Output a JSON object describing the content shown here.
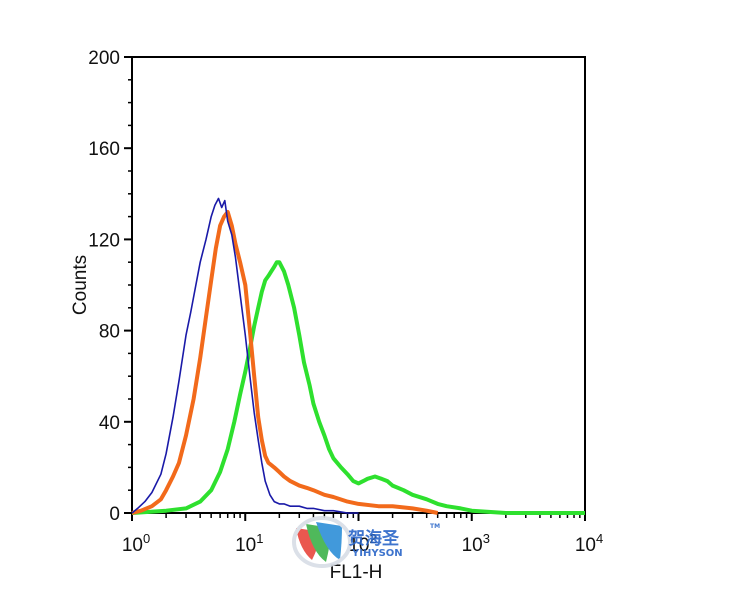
{
  "chart_data": {
    "type": "line",
    "title": "",
    "xlabel": "FL1-H",
    "ylabel": "Counts",
    "x_scale": "log",
    "xlim": [
      1,
      10000
    ],
    "ylim": [
      0,
      200
    ],
    "y_ticks": [
      "0",
      "40",
      "80",
      "120",
      "160",
      "200"
    ],
    "x_ticks": [
      {
        "base": "10",
        "exp": "0"
      },
      {
        "base": "10",
        "exp": "1"
      },
      {
        "base": "10",
        "exp": "2"
      },
      {
        "base": "10",
        "exp": "3"
      },
      {
        "base": "10",
        "exp": "4"
      }
    ],
    "grid": false,
    "series": [
      {
        "color": "#1a1aa8",
        "stroke": "thin",
        "x": [
          1,
          1.12,
          1.3,
          1.5,
          1.8,
          2.0,
          2.3,
          2.6,
          3.0,
          3.3,
          3.6,
          4.0,
          4.5,
          5.0,
          5.4,
          5.8,
          6.2,
          6.6,
          7.0,
          7.6,
          8.2,
          9.0,
          10.0,
          11.0,
          12.0,
          13.0,
          14.0,
          15.0,
          16.5,
          18.0,
          20.0,
          22.0,
          25.0,
          30.0,
          35.0,
          40.0,
          50.0,
          60.0,
          80.0,
          100.0
        ],
        "values": [
          0,
          2,
          5,
          9,
          17,
          26,
          42,
          58,
          78,
          88,
          98,
          110,
          120,
          130,
          135,
          138,
          134,
          137,
          128,
          122,
          112,
          96,
          78,
          60,
          44,
          32,
          22,
          14,
          8,
          5,
          4,
          4,
          3,
          3,
          2,
          2,
          1,
          1,
          0,
          0
        ]
      },
      {
        "color": "#f26a1b",
        "stroke": "thick",
        "x": [
          1,
          1.2,
          1.5,
          1.8,
          2.0,
          2.3,
          2.6,
          3.0,
          3.5,
          4.0,
          4.5,
          5.0,
          5.5,
          6.0,
          6.5,
          7.0,
          7.6,
          8.2,
          9.0,
          10.0,
          11.0,
          12.0,
          13.0,
          14.0,
          15.0,
          16.0,
          17.0,
          18.0,
          20.0,
          22.0,
          25.0,
          30.0,
          35.0,
          40.0,
          50.0,
          60.0,
          80.0,
          100.0,
          150.0,
          200.0,
          300.0,
          400.0,
          500.0
        ],
        "values": [
          0,
          1,
          3,
          6,
          10,
          16,
          22,
          34,
          50,
          68,
          86,
          102,
          116,
          126,
          130,
          132,
          126,
          118,
          110,
          100,
          80,
          60,
          42,
          32,
          25,
          22,
          21,
          20,
          18,
          16,
          14,
          12,
          11,
          10,
          8,
          7,
          5,
          4,
          3,
          3,
          2,
          1,
          0
        ]
      },
      {
        "color": "#2ee02e",
        "stroke": "thick",
        "x": [
          1,
          2.0,
          3.0,
          4.0,
          5.0,
          6.0,
          7.0,
          8.0,
          9.0,
          10.0,
          11.0,
          12.0,
          13.0,
          14.0,
          15.0,
          16.0,
          17.0,
          18.0,
          19.0,
          20.0,
          22.0,
          24.0,
          27.0,
          30.0,
          33.0,
          37.0,
          40.0,
          45.0,
          50.0,
          55.0,
          60.0,
          70.0,
          80.0,
          90.0,
          100.0,
          110.0,
          120.0,
          140.0,
          160.0,
          180.0,
          200.0,
          250.0,
          300.0,
          400.0,
          500.0,
          600.0,
          800.0,
          1000.0,
          2000.0,
          10000.0
        ],
        "values": [
          0,
          1,
          2,
          5,
          10,
          18,
          28,
          40,
          52,
          62,
          72,
          82,
          90,
          97,
          102,
          104,
          106,
          108,
          110,
          110,
          106,
          100,
          90,
          78,
          66,
          56,
          48,
          40,
          34,
          28,
          24,
          20,
          17,
          14,
          13,
          14,
          15,
          16,
          15,
          14,
          12,
          10,
          8,
          6,
          4,
          3,
          2,
          1,
          0,
          0
        ]
      }
    ]
  },
  "watermark": {
    "text": "贺海圣",
    "sub": "YIHYSON",
    "tm": "TM"
  }
}
